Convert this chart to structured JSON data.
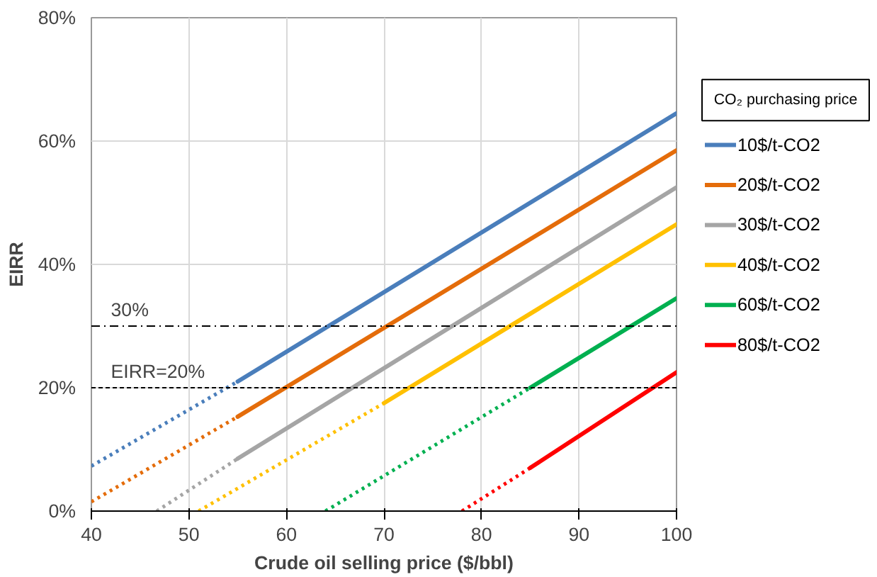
{
  "chart_data": {
    "type": "line",
    "xlabel": "Crude oil selling price ($/bbl)",
    "ylabel": "EIRR",
    "legend_title": "CO₂ purchasing price",
    "series": [
      {
        "name": "10$/t-CO2",
        "color": "#4a7ebb",
        "x": [
          55,
          100
        ],
        "values": [
          21,
          64.5
        ],
        "line_style": "solid"
      },
      {
        "name": "20$/t-CO2",
        "color": "#e46c0a",
        "x": [
          55,
          100
        ],
        "values": [
          15.3,
          58.5
        ],
        "line_style": "solid"
      },
      {
        "name": "30$/t-CO2",
        "color": "#a5a5a5",
        "x": [
          55,
          100
        ],
        "values": [
          8.5,
          52.5
        ],
        "line_style": "solid"
      },
      {
        "name": "40$/t-CO2",
        "color": "#ffc000",
        "x": [
          70,
          100
        ],
        "values": [
          17.5,
          46.5
        ],
        "line_style": "solid"
      },
      {
        "name": "60$/t-CO2",
        "color": "#00b050",
        "x": [
          85,
          100
        ],
        "values": [
          20,
          34.5
        ],
        "line_style": "solid"
      },
      {
        "name": "80$/t-CO2",
        "color": "#ff0000",
        "x": [
          85,
          100
        ],
        "values": [
          7,
          22.5
        ],
        "line_style": "solid"
      },
      {
        "color": "#4a7ebb",
        "x": [
          40,
          55
        ],
        "values": [
          7.3,
          21
        ],
        "line_style": "dotted"
      },
      {
        "color": "#e46c0a",
        "x": [
          40,
          55
        ],
        "values": [
          1.5,
          15.3
        ],
        "line_style": "dotted"
      },
      {
        "color": "#a5a5a5",
        "x": [
          46.7,
          55
        ],
        "values": [
          0,
          8.5
        ],
        "line_style": "dotted"
      },
      {
        "color": "#ffc000",
        "x": [
          51,
          70
        ],
        "values": [
          0,
          17.5
        ],
        "line_style": "dotted"
      },
      {
        "color": "#00b050",
        "x": [
          64,
          85
        ],
        "values": [
          0,
          20
        ],
        "line_style": "dotted"
      },
      {
        "color": "#ff0000",
        "x": [
          78,
          85
        ],
        "values": [
          0,
          7
        ],
        "line_style": "dotted"
      }
    ],
    "xlim": [
      40,
      100
    ],
    "xticks": [
      40,
      50,
      60,
      70,
      80,
      90,
      100
    ],
    "ylim": [
      0,
      80
    ],
    "yticks": [
      {
        "value": 0,
        "label": "0%"
      },
      {
        "value": 20,
        "label": "20%"
      },
      {
        "value": 40,
        "label": "40%"
      },
      {
        "value": 60,
        "label": "60%"
      },
      {
        "value": 80,
        "label": "80%"
      }
    ],
    "ref_lines": [
      {
        "axis": "y",
        "value": 30,
        "label": "30%",
        "line_style": "dashdot",
        "color": "#000000"
      },
      {
        "axis": "y",
        "value": 20,
        "label": "EIRR=20%",
        "line_style": "dashed",
        "color": "#000000"
      }
    ],
    "grid": true,
    "legend": "right",
    "marker": "none"
  }
}
